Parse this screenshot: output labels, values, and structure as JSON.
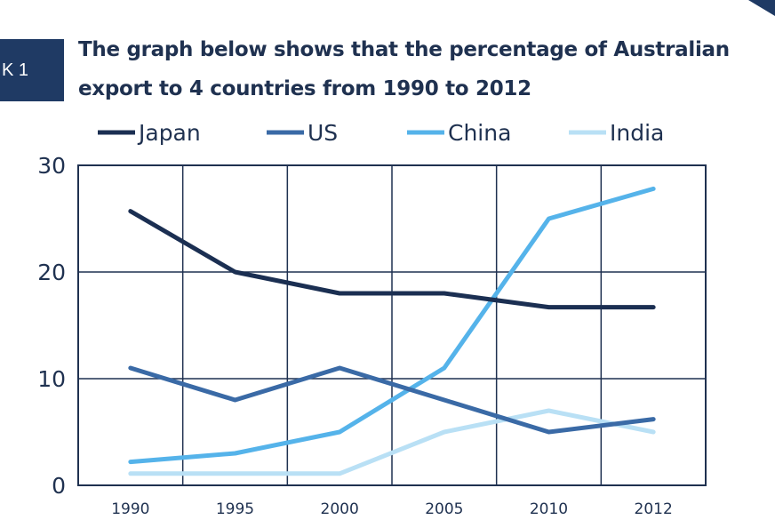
{
  "header": {
    "tab_label": "K 1",
    "title_line1": "The graph below shows that the percentage of Australian",
    "title_line2": "export to 4 countries from 1990 to 2012"
  },
  "colors": {
    "Japan": "#1b2f52",
    "US": "#3a6aa6",
    "China": "#55b3ea",
    "India": "#b9e0f5",
    "axis": "#1f3150",
    "grid": "#1f3150"
  },
  "chart_data": {
    "type": "line",
    "x": [
      "1990",
      "1995",
      "2000",
      "2005",
      "2010",
      "2012"
    ],
    "series": [
      {
        "name": "Japan",
        "values": [
          25.7,
          20,
          18,
          18,
          16.7,
          16.7
        ]
      },
      {
        "name": "US",
        "values": [
          11,
          8,
          11,
          8,
          5,
          6.2
        ]
      },
      {
        "name": "China",
        "values": [
          2.2,
          3,
          5,
          11,
          25,
          27.8
        ]
      },
      {
        "name": "India",
        "values": [
          1.1,
          1.1,
          1.1,
          5,
          7,
          5
        ]
      }
    ],
    "yticks": [
      0,
      10,
      20,
      30
    ],
    "ylim": [
      0,
      30
    ],
    "legend": [
      "Japan",
      "US",
      "China",
      "India"
    ],
    "legend_position": "top",
    "grid": true,
    "xlabel": "",
    "ylabel": ""
  }
}
